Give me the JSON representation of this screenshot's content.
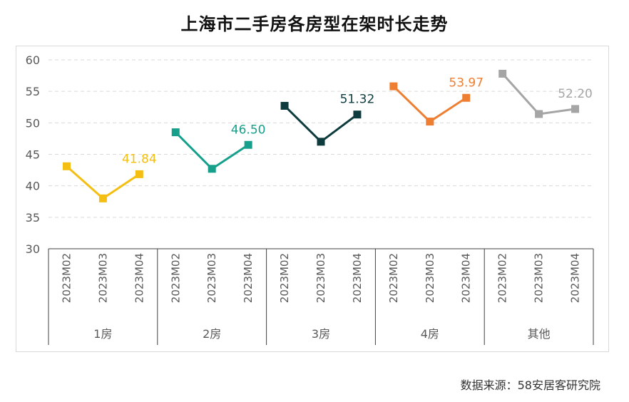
{
  "title": "上海市二手房各房型在架时长走势",
  "source": "数据来源：58安居客研究院",
  "chart_data": {
    "type": "line",
    "title": "上海市二手房各房型在架时长走势",
    "xlabel": "",
    "ylabel": "",
    "ylim": [
      30,
      60
    ],
    "yticks": [
      30,
      35,
      40,
      45,
      50,
      55,
      60
    ],
    "grid": true,
    "periods": [
      "2023M02",
      "2023M03",
      "2023M04"
    ],
    "groups": [
      {
        "name": "1房",
        "values": [
          43.1,
          38.0,
          41.84
        ],
        "label": "41.84",
        "color": "#F5BE12"
      },
      {
        "name": "2房",
        "values": [
          48.5,
          42.7,
          46.5
        ],
        "label": "46.50",
        "color": "#16A08C"
      },
      {
        "name": "3房",
        "values": [
          52.7,
          47.0,
          51.32
        ],
        "label": "51.32",
        "color": "#0E3C3E"
      },
      {
        "name": "4房",
        "values": [
          55.8,
          50.2,
          53.97
        ],
        "label": "53.97",
        "color": "#EE7E32"
      },
      {
        "name": "其他",
        "values": [
          57.8,
          51.4,
          52.2
        ],
        "label": "52.20",
        "color": "#A5A5A5"
      }
    ]
  }
}
